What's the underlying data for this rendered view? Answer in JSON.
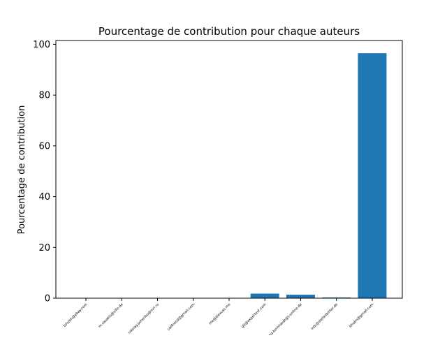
{
  "chart_data": {
    "type": "bar",
    "title": "Pourcentage de contribution pour chaque auteurs",
    "xlabel": "",
    "ylabel": "Pourcentage de contribution",
    "categories": [
      "tshubh@ebay.com",
      "m.sasakis@sillo.de",
      "nikolay.pshenko@mri.ru",
      "calikiesd@gmail.com",
      "me@alexcas.me",
      "git@expertest.com",
      "ma.bernhardt@t-online.de",
      "info@stefanbirker.de",
      "bhubn@gmail.com"
    ],
    "values": [
      0,
      0,
      0,
      0,
      0,
      1.8,
      1.4,
      0.3,
      96.5
    ],
    "ylim": [
      0,
      101.5
    ],
    "yticks": [
      0,
      20,
      40,
      60,
      80,
      100
    ],
    "bar_color": "#1f77b4",
    "grid": false,
    "legend": "none"
  }
}
